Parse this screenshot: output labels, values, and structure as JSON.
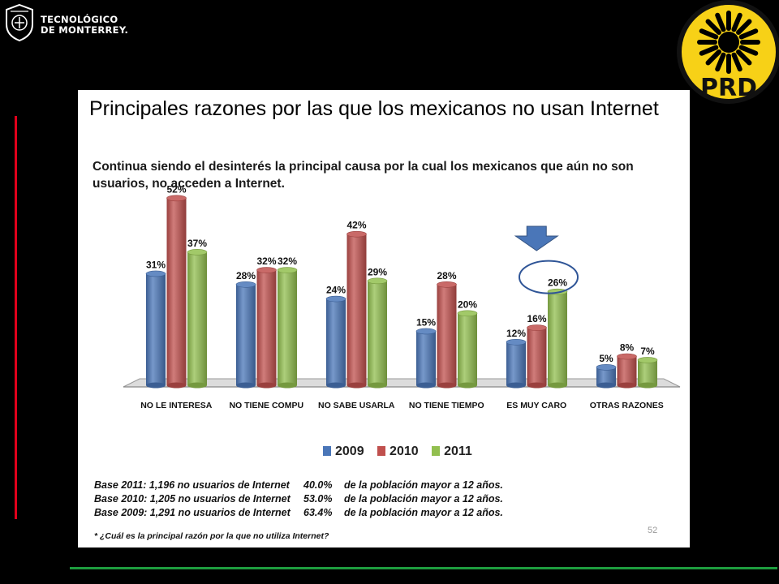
{
  "logo_tec": {
    "line1": "TECNOLÓGICO",
    "line2": "DE MONTERREY."
  },
  "logo_prd": {
    "text": "PRD",
    "sun_color": "#000000",
    "bg_color": "#f7d117"
  },
  "slide": {
    "title": "Principales razones por las que los mexicanos no usan Internet",
    "subtitle": "Continua siendo el desinterés la principal causa por la cual los mexicanos que aún no son usuarios, no acceden a Internet.",
    "notes": [
      {
        "base": "Base 2011: 1,196 no usuarios de Internet",
        "pct": "40.0%",
        "desc": "de la población mayor a 12 años."
      },
      {
        "base": "Base 2010: 1,205 no usuarios de Internet",
        "pct": "53.0%",
        "desc": "de la población mayor a 12 años."
      },
      {
        "base": "Base 2009: 1,291 no usuarios de Internet",
        "pct": "63.4%",
        "desc": "de la población mayor a 12 años."
      }
    ],
    "footnote": "* ¿Cuál es la principal razón por la que no utiliza Internet?",
    "page_number": "52"
  },
  "chart_data": {
    "type": "bar",
    "categories": [
      "NO LE INTERESA",
      "NO TIENE COMPU",
      "NO SABE USARLA",
      "NO TIENE TIEMPO",
      "ES MUY CARO",
      "OTRAS RAZONES"
    ],
    "series": [
      {
        "name": "2009",
        "values": [
          31,
          28,
          24,
          15,
          12,
          5
        ],
        "labels": [
          "31%",
          "28%",
          "24%",
          "15%",
          "12%",
          "5%"
        ],
        "color": "#4a76b8"
      },
      {
        "name": "2010",
        "values": [
          52,
          32,
          42,
          28,
          16,
          8
        ],
        "labels": [
          "52%",
          "32%",
          "42%",
          "28%",
          "16%",
          "8%"
        ],
        "color": "#c0504d"
      },
      {
        "name": "2011",
        "values": [
          37,
          32,
          29,
          20,
          26,
          7
        ],
        "labels": [
          "37%",
          "32%",
          "29%",
          "20%",
          "26%",
          "7%"
        ],
        "color": "#92bf4f"
      }
    ],
    "ylim": [
      0,
      55
    ],
    "legend_position": "bottom",
    "grid": false,
    "highlight": {
      "category": "ES MUY CARO",
      "series": "2011",
      "arrow_color": "#4a76b8",
      "circle_color": "#2f5597"
    }
  }
}
